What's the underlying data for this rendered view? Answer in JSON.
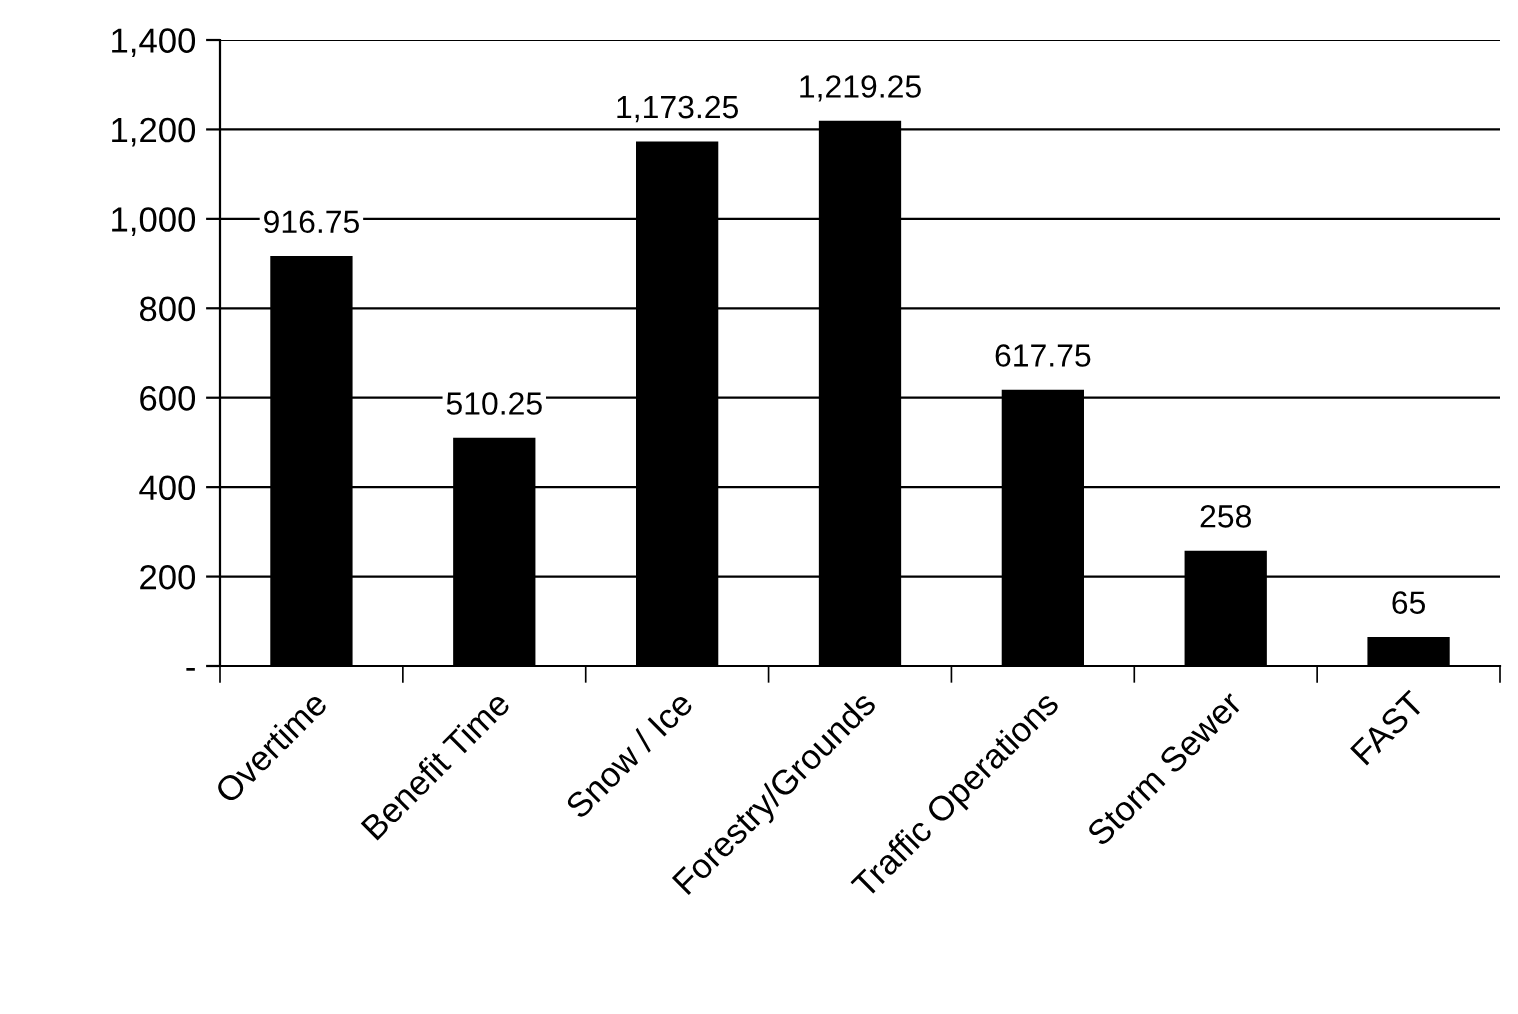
{
  "chart_data": {
    "type": "bar",
    "categories": [
      "Overtime",
      "Benefit Time",
      "Snow / Ice",
      "Forestry/Grounds",
      "Traffic Operations",
      "Storm Sewer",
      "FAST"
    ],
    "values": [
      916.75,
      510.25,
      1173.25,
      1219.25,
      617.75,
      258,
      65
    ],
    "value_labels": [
      "916.75",
      "510.25",
      "1,173.25",
      "1,219.25",
      "617.75",
      "258",
      "65"
    ],
    "color": "#000000",
    "ylim": [
      0,
      1400
    ],
    "yticks": [
      {
        "value": 0,
        "label": "-"
      },
      {
        "value": 200,
        "label": "200"
      },
      {
        "value": 400,
        "label": "400"
      },
      {
        "value": 600,
        "label": "600"
      },
      {
        "value": 800,
        "label": "800"
      },
      {
        "value": 1000,
        "label": "1,000"
      },
      {
        "value": 1200,
        "label": "1,200"
      },
      {
        "value": 1400,
        "label": "1,400"
      }
    ],
    "grid": "y"
  }
}
